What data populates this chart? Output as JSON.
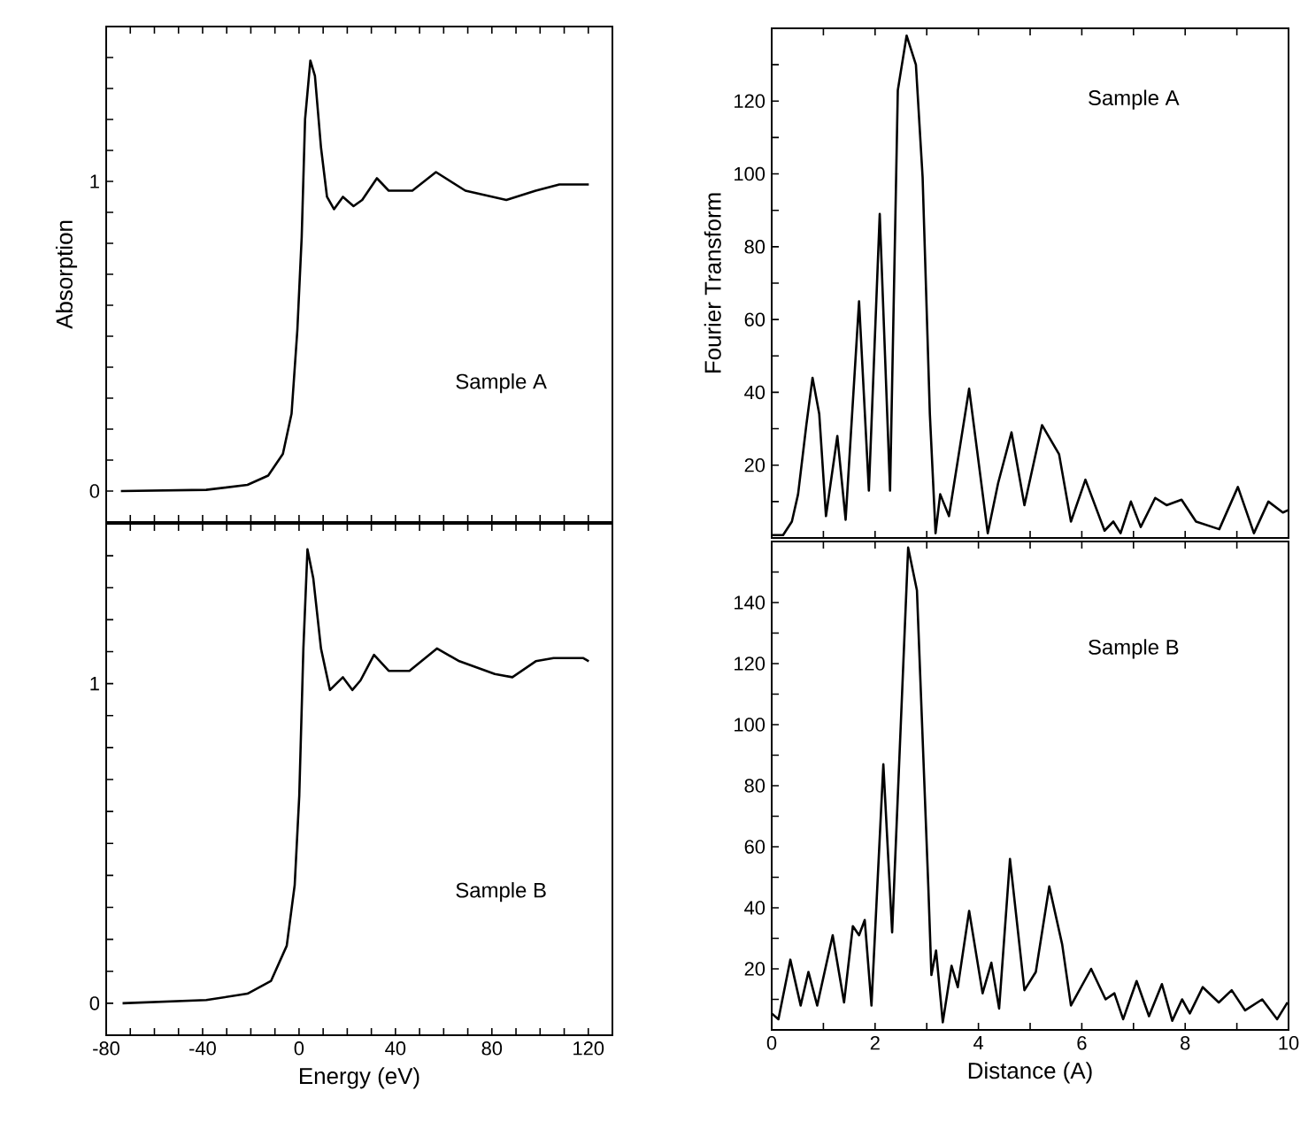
{
  "chart_data": [
    {
      "type": "line",
      "ylabel": "Absorption",
      "annotations": [
        "Sample A"
      ],
      "color": "#000000",
      "marker": "none",
      "tick_labels": "y",
      "x": [
        -73.9,
        -38.5,
        -21.4,
        -12.8,
        -6.7,
        -3.1,
        -0.7,
        1.1,
        2.5,
        4.7,
        6.6,
        9.1,
        11.6,
        14.5,
        18.2,
        22.6,
        26.2,
        32.3,
        37.2,
        47,
        56.8,
        69,
        86,
        98.2,
        108,
        116.6,
        120.2
      ],
      "values": [
        0,
        0.004,
        0.02,
        0.05,
        0.12,
        0.25,
        0.52,
        0.82,
        1.2,
        1.39,
        1.34,
        1.11,
        0.95,
        0.91,
        0.95,
        0.92,
        0.94,
        1.01,
        0.97,
        0.97,
        1.03,
        0.97,
        0.94,
        0.97,
        0.99,
        0.99,
        0.99
      ],
      "xlim": [
        -80,
        130
      ],
      "ylim": [
        -0.1,
        1.5
      ],
      "xticks": [
        -80,
        {
          "value": -70,
          "label": null
        },
        -40,
        {
          "value": -60,
          "label": null
        },
        {
          "value": -50,
          "label": null
        },
        {
          "value": -30,
          "label": null
        },
        {
          "value": -20,
          "label": null
        },
        {
          "value": -10,
          "label": null
        },
        0,
        {
          "value": 10,
          "label": null
        },
        {
          "value": 20,
          "label": null
        },
        {
          "value": 30,
          "label": null
        },
        40,
        {
          "value": 50,
          "label": null
        },
        {
          "value": 60,
          "label": null
        },
        {
          "value": 70,
          "label": null
        },
        80,
        {
          "value": 90,
          "label": null
        },
        {
          "value": 100,
          "label": null
        },
        {
          "value": 110,
          "label": null
        },
        120
      ],
      "yticks": [
        0,
        {
          "value": 0.1,
          "label": null
        },
        {
          "value": 0.2,
          "label": null
        },
        {
          "value": 0.3,
          "label": null
        },
        {
          "value": 0.4,
          "label": null
        },
        {
          "value": 0.5,
          "label": null
        },
        {
          "value": 0.6,
          "label": null
        },
        {
          "value": 0.7,
          "label": null
        },
        {
          "value": 0.8,
          "label": null
        },
        {
          "value": 0.9,
          "label": null
        },
        1,
        {
          "value": 1.1,
          "label": null
        },
        {
          "value": 1.2,
          "label": null
        },
        {
          "value": 1.3,
          "label": null
        },
        {
          "value": 1.4,
          "label": null
        }
      ]
    },
    {
      "type": "line",
      "xlabel": "Energy (eV)",
      "annotations": [
        "Sample B"
      ],
      "color": "#000000",
      "marker": "none",
      "x": [
        -73.2,
        -38.5,
        -21.4,
        -11.6,
        -5.1,
        -1.8,
        0.1,
        1.8,
        3.5,
        5.9,
        9.1,
        12.8,
        18.2,
        22.1,
        25.5,
        31.1,
        37.2,
        45.8,
        57.2,
        66.5,
        81.2,
        88.5,
        98.2,
        105.6,
        117.8,
        120.2
      ],
      "values": [
        0,
        0.01,
        0.03,
        0.07,
        0.18,
        0.37,
        0.65,
        1.11,
        1.42,
        1.33,
        1.11,
        0.98,
        1.02,
        0.98,
        1.01,
        1.09,
        1.04,
        1.04,
        1.11,
        1.07,
        1.03,
        1.02,
        1.07,
        1.08,
        1.08,
        1.07
      ],
      "xlim": [
        -80,
        130
      ],
      "ylim": [
        -0.1,
        1.5
      ],
      "xticks": [
        -80,
        {
          "value": -70,
          "label": null
        },
        -40,
        {
          "value": -60,
          "label": null
        },
        {
          "value": -50,
          "label": null
        },
        {
          "value": -30,
          "label": null
        },
        {
          "value": -20,
          "label": null
        },
        {
          "value": -10,
          "label": null
        },
        0,
        {
          "value": 10,
          "label": null
        },
        {
          "value": 20,
          "label": null
        },
        {
          "value": 30,
          "label": null
        },
        40,
        {
          "value": 50,
          "label": null
        },
        {
          "value": 60,
          "label": null
        },
        {
          "value": 70,
          "label": null
        },
        80,
        {
          "value": 90,
          "label": null
        },
        {
          "value": 100,
          "label": null
        },
        {
          "value": 110,
          "label": null
        },
        120
      ],
      "yticks": [
        0,
        {
          "value": 0.1,
          "label": null
        },
        {
          "value": 0.2,
          "label": null
        },
        {
          "value": 0.3,
          "label": null
        },
        {
          "value": 0.4,
          "label": null
        },
        {
          "value": 0.5,
          "label": null
        },
        {
          "value": 0.6,
          "label": null
        },
        {
          "value": 0.7,
          "label": null
        },
        {
          "value": 0.8,
          "label": null
        },
        {
          "value": 0.9,
          "label": null
        },
        1,
        {
          "value": 1.1,
          "label": null
        },
        {
          "value": 1.2,
          "label": null
        },
        {
          "value": 1.3,
          "label": null
        },
        {
          "value": 1.4,
          "label": null
        }
      ]
    },
    {
      "type": "line",
      "ylabel": "Fourier Transform",
      "annotations": [
        "Sample A"
      ],
      "color": "#000000",
      "marker": "none",
      "tick_labels": "y",
      "x": [
        0,
        0.22,
        0.39,
        0.51,
        0.67,
        0.79,
        0.92,
        1.05,
        1.27,
        1.43,
        1.69,
        1.88,
        2.09,
        2.29,
        2.44,
        2.61,
        2.79,
        2.92,
        3.06,
        3.17,
        3.26,
        3.43,
        3.82,
        4.18,
        4.38,
        4.64,
        4.89,
        5.23,
        5.56,
        5.79,
        6.07,
        6.44,
        6.61,
        6.75,
        6.95,
        7.14,
        7.42,
        7.64,
        7.93,
        8.21,
        8.66,
        9.02,
        9.33,
        9.61,
        9.89,
        10
      ],
      "values": [
        0.8,
        0.8,
        4.5,
        12,
        31,
        44,
        34,
        6,
        28,
        5,
        65,
        13,
        89,
        13,
        123,
        138,
        130,
        99,
        34,
        1.3,
        12,
        6,
        41,
        1.3,
        15,
        29,
        9,
        31,
        23,
        4.5,
        16,
        2,
        4.5,
        1.3,
        10,
        3,
        11,
        9,
        10.5,
        4.5,
        2.4,
        14,
        1.3,
        10,
        7,
        7.7
      ],
      "xlim": [
        0,
        10
      ],
      "ylim": [
        0,
        140
      ],
      "xticks": [
        0,
        {
          "value": 1,
          "label": null
        },
        2,
        {
          "value": 3,
          "label": null
        },
        4,
        {
          "value": 5,
          "label": null
        },
        6,
        {
          "value": 7,
          "label": null
        },
        8,
        {
          "value": 9,
          "label": null
        },
        10
      ],
      "yticks": [
        {
          "value": 10,
          "label": null
        },
        20,
        {
          "value": 30,
          "label": null
        },
        40,
        {
          "value": 50,
          "label": null
        },
        60,
        {
          "value": 70,
          "label": null
        },
        80,
        {
          "value": 90,
          "label": null
        },
        100,
        {
          "value": 110,
          "label": null
        },
        120,
        {
          "value": 130,
          "label": null
        }
      ]
    },
    {
      "type": "line",
      "xlabel": "Distance (A)",
      "annotations": [
        "Sample B"
      ],
      "color": "#000000",
      "marker": "none",
      "x": [
        0,
        0.13,
        0.36,
        0.56,
        0.71,
        0.88,
        1.18,
        1.4,
        1.57,
        1.69,
        1.8,
        1.93,
        2.16,
        2.33,
        2.64,
        2.81,
        3.03,
        3.09,
        3.18,
        3.31,
        3.48,
        3.6,
        3.82,
        4.08,
        4.25,
        4.4,
        4.61,
        4.89,
        5.11,
        5.37,
        5.62,
        5.79,
        6.18,
        6.46,
        6.63,
        6.8,
        7.06,
        7.3,
        7.55,
        7.75,
        7.94,
        8.09,
        8.34,
        8.65,
        8.9,
        9.16,
        9.49,
        9.78,
        9.98
      ],
      "values": [
        5.4,
        3.5,
        23,
        8,
        19,
        8,
        31,
        9,
        34,
        31,
        36,
        8,
        87,
        32,
        158,
        144,
        47,
        18,
        26,
        2.5,
        21,
        14,
        39,
        12,
        22,
        7,
        56,
        13,
        19,
        47,
        28,
        8,
        20,
        10,
        12,
        3.5,
        16,
        4.5,
        15,
        3,
        10,
        5.4,
        14,
        9,
        13,
        6.4,
        10,
        3.5,
        9
      ],
      "xlim": [
        0,
        10
      ],
      "ylim": [
        0,
        160
      ],
      "xticks": [
        0,
        {
          "value": 1,
          "label": null
        },
        2,
        {
          "value": 3,
          "label": null
        },
        4,
        {
          "value": 5,
          "label": null
        },
        6,
        {
          "value": 7,
          "label": null
        },
        8,
        {
          "value": 9,
          "label": null
        },
        10
      ],
      "yticks": [
        {
          "value": 10,
          "label": null
        },
        20,
        {
          "value": 30,
          "label": null
        },
        40,
        {
          "value": 50,
          "label": null
        },
        60,
        {
          "value": 70,
          "label": null
        },
        80,
        {
          "value": 90,
          "label": null
        },
        100,
        {
          "value": 110,
          "label": null
        },
        120,
        {
          "value": 130,
          "label": null
        },
        140,
        {
          "value": 150,
          "label": null
        }
      ]
    }
  ]
}
